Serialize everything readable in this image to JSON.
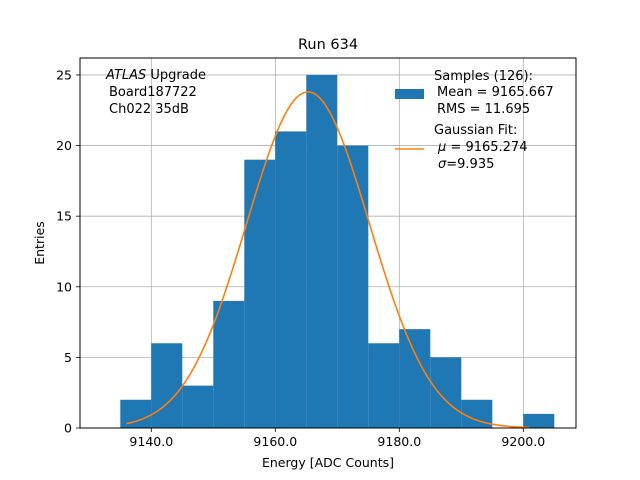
{
  "chart_data": {
    "type": "bar",
    "title": "Run 634",
    "xlabel": "Energy [ADC Counts]",
    "ylabel": "Entries",
    "xlim": [
      9128.5,
      9208.5
    ],
    "ylim": [
      0,
      26.2
    ],
    "grid": true,
    "x_ticks": [
      9140,
      9160,
      9180,
      9200
    ],
    "x_tick_labels": [
      "9140.0",
      "9160.0",
      "9180.0",
      "9200.0"
    ],
    "y_ticks": [
      0,
      5,
      10,
      15,
      20,
      25
    ],
    "y_tick_labels": [
      "0",
      "5",
      "10",
      "15",
      "20",
      "25"
    ],
    "bin_edges": [
      9135,
      9140,
      9145,
      9150,
      9155,
      9160,
      9165,
      9170,
      9175,
      9180,
      9185,
      9190,
      9195,
      9200,
      9205
    ],
    "bin_counts": [
      2,
      6,
      3,
      9,
      19,
      21,
      25,
      20,
      6,
      7,
      5,
      2,
      0,
      1
    ],
    "histogram_color": "#1f77b4",
    "fit": {
      "type": "gaussian",
      "mu": 9165.274,
      "sigma": 9.935,
      "amplitude": 23.8,
      "x_range": [
        9136,
        9201
      ],
      "color": "#ff7f0e"
    },
    "annotation": {
      "italic": "ATLAS",
      "rest": " Upgrade",
      "line2": "Board187722",
      "line3": "Ch022 35dB"
    },
    "legend": {
      "position": "top-right",
      "samples_title": "Samples (126):",
      "samples_mean": "Mean = 9165.667",
      "samples_rms": "RMS = 11.695",
      "fit_title": "Gaussian Fit:",
      "fit_mu": "= 9165.274",
      "fit_sigma": "=9.935"
    }
  }
}
